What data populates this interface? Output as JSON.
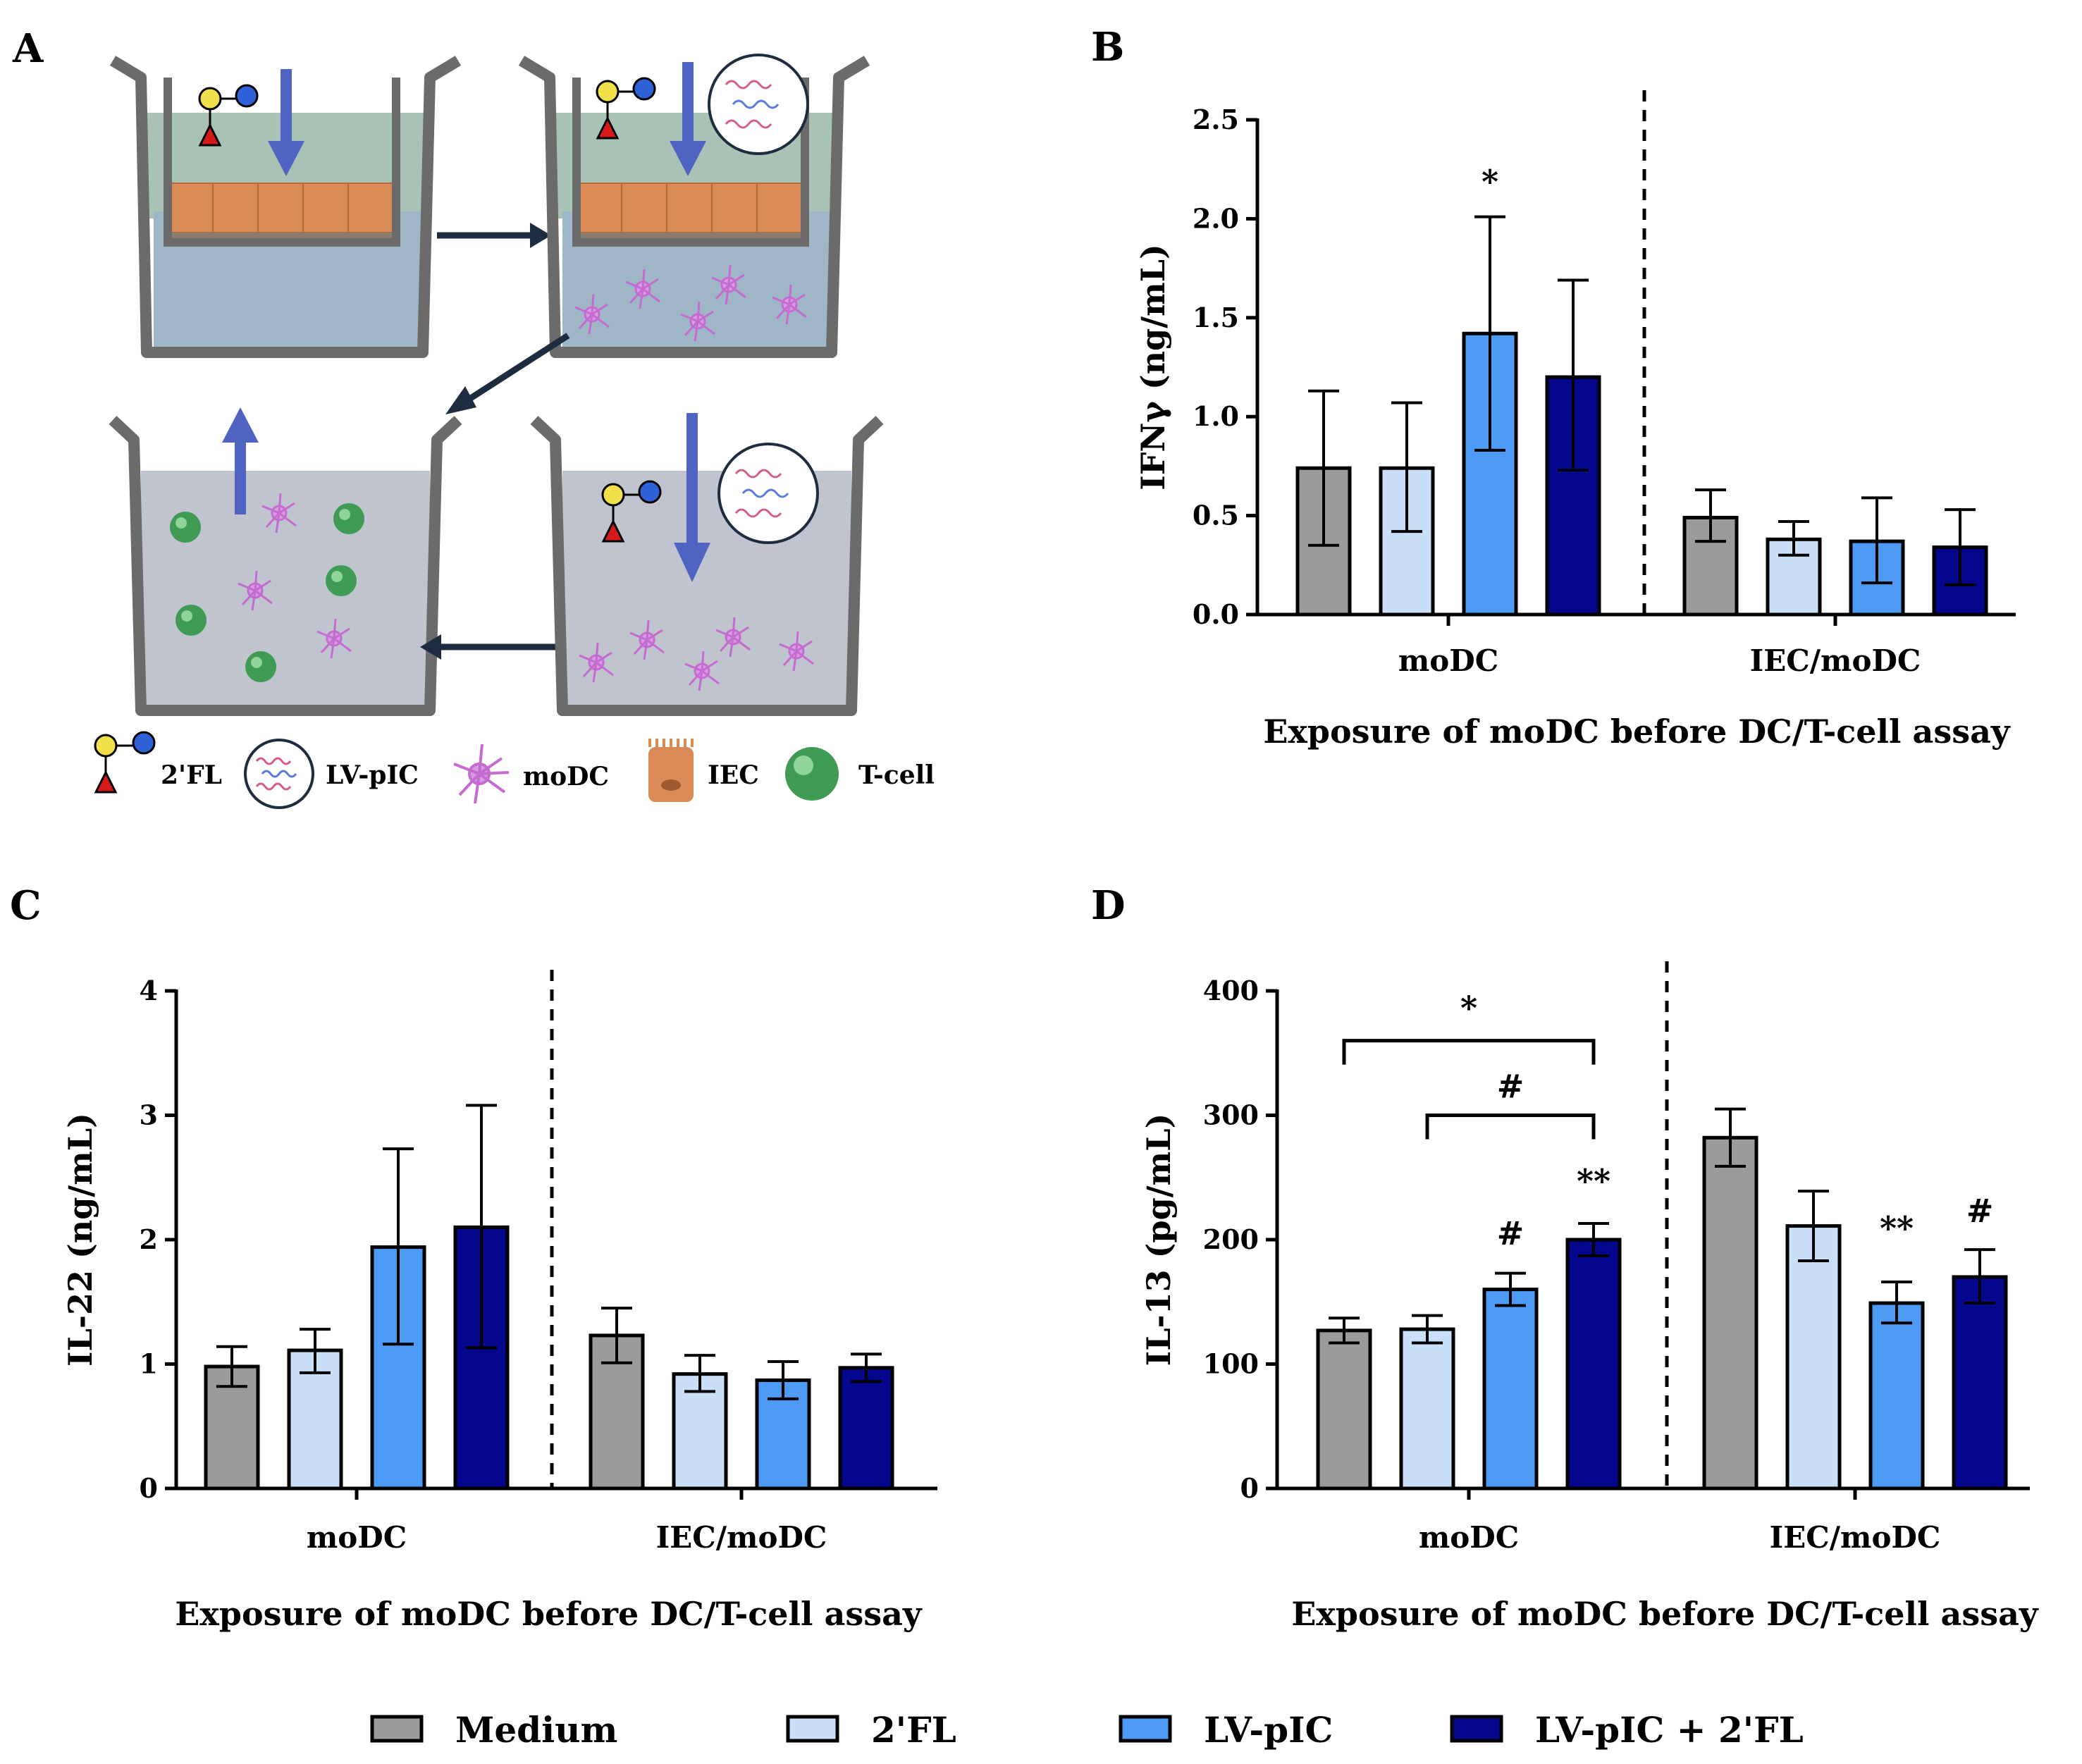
{
  "colors": {
    "Medium": "#9b9b9d",
    "2'FL": "#c9dff7",
    "LV-pIC": "#4e9bf5",
    "LV-pIC + 2'FL": "#04068c",
    "arrow_blue": "#4f63c2",
    "arrow_dark": "#1e2c40",
    "well": "#6b6b6b",
    "apical": "#a8c3b6",
    "basolateral": "#9fb6c7",
    "iec": "#d98a56",
    "modc": "#c46ad0",
    "tcell": "#3f9a54"
  },
  "legend": [
    "Medium",
    "2'FL",
    "LV-pIC",
    "LV-pIC + 2'FL"
  ],
  "schematic": {
    "letter": "A",
    "legend_items": [
      {
        "label": "2'FL",
        "icon": "2fl-glycan-icon"
      },
      {
        "label": "LV-pIC",
        "icon": "lv-pic-icon"
      },
      {
        "label": "moDC",
        "icon": "modc-icon"
      },
      {
        "label": "IEC",
        "icon": "iec-icon"
      },
      {
        "label": "T-cell",
        "icon": "t-cell-icon"
      }
    ]
  },
  "chart_data": [
    {
      "letter": "B",
      "type": "bar",
      "categories": [
        "moDC",
        "IEC/moDC"
      ],
      "ylabel": "IFNγ (ng/mL)",
      "xlabel": "Exposure of moDC before DC/T-cell assay",
      "ylim": [
        0,
        2.5
      ],
      "yticks": [
        "0.0",
        "0.5",
        "1.0",
        "1.5",
        "2.0",
        "2.5"
      ],
      "ytick_values": [
        0,
        0.5,
        1.0,
        1.5,
        2.0,
        2.5
      ],
      "series": [
        {
          "name": "Medium",
          "values": [
            0.74,
            0.49
          ],
          "err_low": [
            0.35,
            0.37
          ],
          "err_high": [
            1.13,
            0.63
          ]
        },
        {
          "name": "2'FL",
          "values": [
            0.74,
            0.38
          ],
          "err_low": [
            0.42,
            0.3
          ],
          "err_high": [
            1.07,
            0.47
          ]
        },
        {
          "name": "LV-pIC",
          "values": [
            1.42,
            0.37
          ],
          "err_low": [
            0.83,
            0.16
          ],
          "err_high": [
            2.01,
            0.59
          ]
        },
        {
          "name": "LV-pIC + 2'FL",
          "values": [
            1.2,
            0.34
          ],
          "err_low": [
            0.73,
            0.15
          ],
          "err_high": [
            1.69,
            0.53
          ]
        }
      ],
      "annotations": [
        {
          "text": "*",
          "group": 0,
          "series": 2,
          "y": 2.18
        }
      ],
      "brackets": []
    },
    {
      "letter": "C",
      "type": "bar",
      "categories": [
        "moDC",
        "IEC/moDC"
      ],
      "ylabel": "IL-22 (ng/mL)",
      "xlabel": "Exposure of moDC before DC/T-cell assay",
      "ylim": [
        0,
        4
      ],
      "yticks": [
        "0",
        "1",
        "2",
        "3",
        "4"
      ],
      "ytick_values": [
        0,
        1,
        2,
        3,
        4
      ],
      "series": [
        {
          "name": "Medium",
          "values": [
            0.98,
            1.23
          ],
          "err_low": [
            0.82,
            1.01
          ],
          "err_high": [
            1.14,
            1.45
          ]
        },
        {
          "name": "2'FL",
          "values": [
            1.11,
            0.92
          ],
          "err_low": [
            0.93,
            0.78
          ],
          "err_high": [
            1.28,
            1.07
          ]
        },
        {
          "name": "LV-pIC",
          "values": [
            1.94,
            0.87
          ],
          "err_low": [
            1.16,
            0.72
          ],
          "err_high": [
            2.73,
            1.02
          ]
        },
        {
          "name": "LV-pIC + 2'FL",
          "values": [
            2.1,
            0.97
          ],
          "err_low": [
            1.13,
            0.86
          ],
          "err_high": [
            3.08,
            1.08
          ]
        }
      ],
      "annotations": [],
      "brackets": []
    },
    {
      "letter": "D",
      "type": "bar",
      "categories": [
        "moDC",
        "IEC/moDC"
      ],
      "ylabel": "IL-13 (pg/mL)",
      "xlabel": "Exposure of moDC before DC/T-cell assay",
      "ylim": [
        0,
        400
      ],
      "yticks": [
        "0",
        "100",
        "200",
        "300",
        "400"
      ],
      "ytick_values": [
        0,
        100,
        200,
        300,
        400
      ],
      "series": [
        {
          "name": "Medium",
          "values": [
            127,
            282
          ],
          "err_low": [
            117,
            259
          ],
          "err_high": [
            137,
            305
          ]
        },
        {
          "name": "2'FL",
          "values": [
            128,
            211
          ],
          "err_low": [
            117,
            183
          ],
          "err_high": [
            139,
            239
          ]
        },
        {
          "name": "LV-pIC",
          "values": [
            160,
            149
          ],
          "err_low": [
            147,
            133
          ],
          "err_high": [
            173,
            166
          ]
        },
        {
          "name": "LV-pIC + 2'FL",
          "values": [
            200,
            170
          ],
          "err_low": [
            187,
            149
          ],
          "err_high": [
            213,
            192
          ]
        }
      ],
      "annotations": [
        {
          "text": "#",
          "group": 0,
          "series": 2,
          "y": 204
        },
        {
          "text": "**",
          "group": 0,
          "series": 3,
          "y": 246
        },
        {
          "text": "**",
          "group": 1,
          "series": 2,
          "y": 208
        },
        {
          "text": "#",
          "group": 1,
          "series": 3,
          "y": 222
        }
      ],
      "brackets": [
        {
          "text": "*",
          "group": 0,
          "from_series": 0,
          "to_series": 3,
          "y": 360,
          "label_y": 385
        },
        {
          "text": "#",
          "group": 0,
          "from_series": 1,
          "to_series": 3,
          "y": 300,
          "label_y": 322
        }
      ]
    }
  ]
}
